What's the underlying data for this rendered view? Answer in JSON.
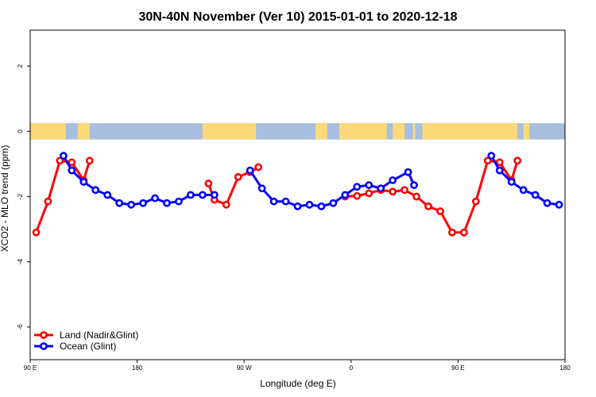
{
  "chart_data": {
    "type": "line",
    "title": "30N-40N November (Ver 10)   2015-01-01 to 2020-12-18",
    "xlabel": "Longitude (deg E)",
    "ylabel": "XCO2 - MLO trend (ppm)",
    "xlim": [
      90,
      540
    ],
    "ylim": [
      -7,
      3.1
    ],
    "x_ticks": [
      {
        "value": 90,
        "label": "90 E"
      },
      {
        "value": 180,
        "label": "180"
      },
      {
        "value": 270,
        "label": "90 W"
      },
      {
        "value": 360,
        "label": "0"
      },
      {
        "value": 450,
        "label": "90 E"
      },
      {
        "value": 540,
        "label": "180"
      }
    ],
    "y_ticks": [
      {
        "value": 2,
        "label": "2"
      },
      {
        "value": 0,
        "label": "0"
      },
      {
        "value": -2,
        "label": "-2"
      },
      {
        "value": -4,
        "label": "-4"
      },
      {
        "value": -6,
        "label": "-6"
      }
    ],
    "legend_position": "bottom-left",
    "series": [
      {
        "name": "Land (Nadir&Glint)",
        "color": "#ff0000",
        "segments": [
          [
            [
              95,
              -3.1
            ],
            [
              105,
              -2.15
            ],
            [
              115,
              -0.9
            ],
            [
              125,
              -0.95
            ],
            [
              135,
              -1.5
            ],
            [
              140,
              -0.9
            ]
          ],
          [
            [
              240,
              -1.6
            ],
            [
              245,
              -2.1
            ],
            [
              255,
              -2.25
            ],
            [
              265,
              -1.4
            ],
            [
              275,
              -1.25
            ],
            [
              282,
              -1.1
            ]
          ],
          [
            [
              355,
              -2.0
            ],
            [
              365,
              -1.98
            ],
            [
              375,
              -1.9
            ],
            [
              385,
              -1.8
            ],
            [
              395,
              -1.85
            ],
            [
              405,
              -1.8
            ],
            [
              415,
              -2.0
            ],
            [
              425,
              -2.3
            ],
            [
              435,
              -2.45
            ],
            [
              445,
              -3.1
            ],
            [
              455,
              -3.1
            ],
            [
              465,
              -2.15
            ],
            [
              475,
              -0.9
            ],
            [
              485,
              -0.95
            ],
            [
              495,
              -1.5
            ],
            [
              500,
              -0.9
            ]
          ]
        ]
      },
      {
        "name": "Ocean (Glint)",
        "color": "#0000ff",
        "segments": [
          [
            [
              118,
              -0.75
            ],
            [
              125,
              -1.2
            ],
            [
              135,
              -1.55
            ],
            [
              145,
              -1.8
            ],
            [
              155,
              -1.95
            ],
            [
              165,
              -2.2
            ],
            [
              175,
              -2.25
            ],
            [
              185,
              -2.2
            ],
            [
              195,
              -2.05
            ],
            [
              205,
              -2.2
            ],
            [
              215,
              -2.15
            ],
            [
              225,
              -1.95
            ],
            [
              235,
              -1.95
            ],
            [
              245,
              -1.95
            ]
          ],
          [
            [
              275,
              -1.2
            ],
            [
              285,
              -1.75
            ],
            [
              295,
              -2.15
            ],
            [
              305,
              -2.15
            ],
            [
              315,
              -2.3
            ],
            [
              325,
              -2.25
            ],
            [
              335,
              -2.3
            ],
            [
              345,
              -2.2
            ],
            [
              355,
              -1.95
            ],
            [
              365,
              -1.7
            ],
            [
              375,
              -1.65
            ],
            [
              385,
              -1.75
            ],
            [
              395,
              -1.5
            ],
            [
              408,
              -1.25
            ],
            [
              413,
              -1.65
            ]
          ]
        ],
        "segments_tail": [
          [
            478,
            -0.75
          ],
          [
            485,
            -1.2
          ],
          [
            495,
            -1.55
          ],
          [
            505,
            -1.8
          ],
          [
            515,
            -1.95
          ],
          [
            525,
            -2.2
          ],
          [
            535,
            -2.25
          ]
        ]
      }
    ]
  }
}
